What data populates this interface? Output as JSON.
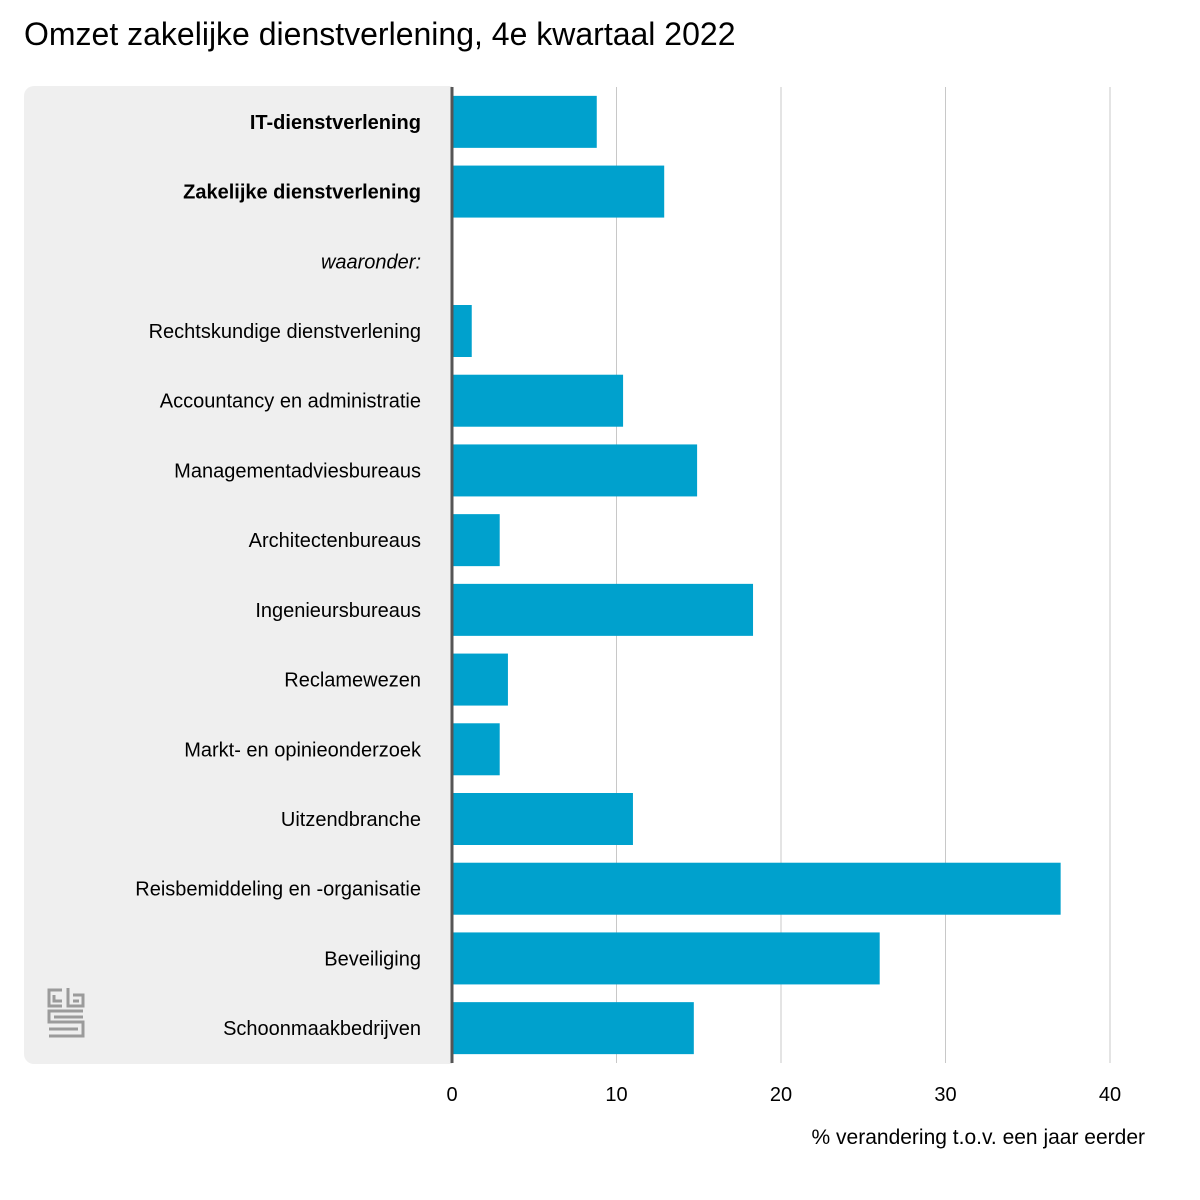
{
  "chart_data": {
    "type": "bar",
    "orientation": "horizontal",
    "title": "Omzet zakelijke dienstverlening, 4e kwartaal 2022",
    "xlabel": "% verandering t.o.v. een jaar eerder",
    "ylabel": "",
    "xlim": [
      0,
      40
    ],
    "xticks": [
      "0",
      "10",
      "20",
      "30",
      "40"
    ],
    "grid": true,
    "bar_color": "#00a1cd",
    "categories": [
      "IT-dienstverlening",
      "Zakelijke dienstverlening",
      "waaronder:",
      "Rechtskundige dienstverlening",
      "Accountancy en administratie",
      "Managementadviesbureaus",
      "Architectenbureaus",
      "Ingenieursbureaus",
      "Reclamewezen",
      "Markt- en opinieonderzoek",
      "Uitzendbranche",
      "Reisbemiddeling en -organisatie",
      "Beveiliging",
      "Schoonmaakbedrijven"
    ],
    "category_styles": [
      "bold",
      "bold",
      "italic",
      "normal",
      "normal",
      "normal",
      "normal",
      "normal",
      "normal",
      "normal",
      "normal",
      "normal",
      "normal",
      "normal"
    ],
    "values": [
      8.8,
      12.9,
      null,
      1.2,
      10.4,
      14.9,
      2.9,
      18.3,
      3.4,
      2.9,
      11.0,
      37.0,
      26.0,
      14.7
    ]
  },
  "logo": {
    "icon": "cbs-logo-icon"
  }
}
